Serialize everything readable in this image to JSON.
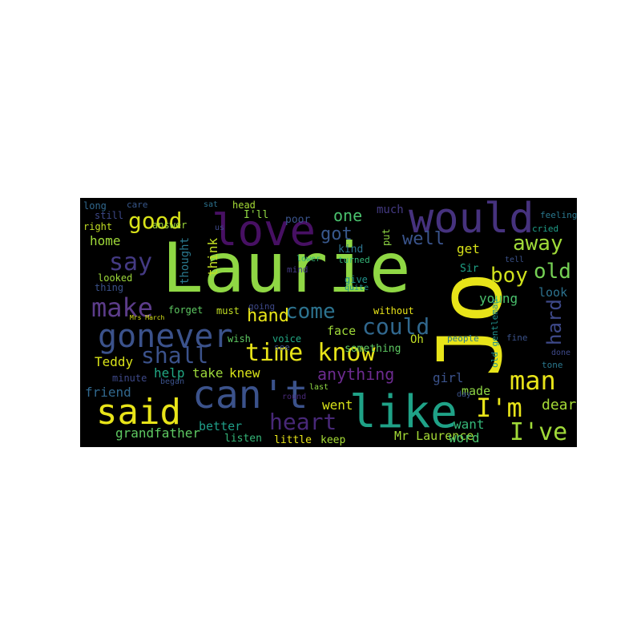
{
  "words": {
    "laurie": {
      "text": "Laurie",
      "color": "#8fd744"
    },
    "jo": {
      "text": "Jo",
      "color": "#e8e419"
    },
    "would": {
      "text": "would",
      "color": "#46327e"
    },
    "love": {
      "text": "love",
      "color": "#471063"
    },
    "cant": {
      "text": "can't",
      "color": "#3b528b"
    },
    "like": {
      "text": "like",
      "color": "#1fa287"
    },
    "said": {
      "text": "said",
      "color": "#e8e419"
    },
    "gonever": {
      "text": "gonever",
      "color": "#3b528b"
    },
    "time_know": {
      "text": "time know",
      "color": "#e8e419"
    },
    "good": {
      "text": "good",
      "color": "#d8e219"
    },
    "make": {
      "text": "make",
      "color": "#5c3c8a"
    },
    "say": {
      "text": "say",
      "color": "#443a83"
    },
    "could": {
      "text": "could",
      "color": "#31688e"
    },
    "shall": {
      "text": "shall",
      "color": "#3b528b"
    },
    "heart": {
      "text": "heart",
      "color": "#482878"
    },
    "come": {
      "text": "come",
      "color": "#2c728e"
    },
    "man": {
      "text": "man",
      "color": "#e8e419"
    },
    "im": {
      "text": "I'm",
      "color": "#e8e419"
    },
    "ive": {
      "text": "I've",
      "color": "#a0da39"
    },
    "boy": {
      "text": "boy",
      "color": "#d0e11c"
    },
    "old": {
      "text": "old",
      "color": "#75d054"
    },
    "away": {
      "text": "away",
      "color": "#a0da39"
    },
    "one": {
      "text": "one",
      "color": "#4ac16d"
    },
    "got": {
      "text": "got",
      "color": "#38588c"
    },
    "well": {
      "text": "well",
      "color": "#3a548c"
    },
    "hand": {
      "text": "hand",
      "color": "#e8e419"
    },
    "anything": {
      "text": "anything",
      "color": "#6c2b8f"
    },
    "hard": {
      "text": "hard",
      "color": "#3e4989"
    },
    "teddy": {
      "text": "Teddy",
      "color": "#d8e219"
    },
    "grandfather": {
      "text": "grandfather",
      "color": "#5ec962"
    },
    "mr_laurence": {
      "text": "Mr Laurence",
      "color": "#a5db36"
    },
    "home": {
      "text": "home",
      "color": "#a0da39"
    },
    "take": {
      "text": "take",
      "color": "#9dd93b"
    },
    "knew": {
      "text": "knew",
      "color": "#d8e219"
    },
    "help": {
      "text": "help",
      "color": "#22a884"
    },
    "friend": {
      "text": "friend",
      "color": "#31688e"
    },
    "better": {
      "text": "better",
      "color": "#1f9e89"
    },
    "listen": {
      "text": "listen",
      "color": "#35b779"
    },
    "little": {
      "text": "little",
      "color": "#e8e419"
    },
    "keep": {
      "text": "keep",
      "color": "#a5db36"
    },
    "word": {
      "text": "word",
      "color": "#4ac16d"
    },
    "want": {
      "text": "want",
      "color": "#35b779"
    },
    "dear": {
      "text": "dear",
      "color": "#a5db36"
    },
    "girl": {
      "text": "girl",
      "color": "#3b528b"
    },
    "made": {
      "text": "made",
      "color": "#8fd744"
    },
    "went": {
      "text": "went",
      "color": "#d8e219"
    },
    "get": {
      "text": "get",
      "color": "#d8e219"
    },
    "look": {
      "text": "look",
      "color": "#2c728e"
    },
    "young": {
      "text": "young",
      "color": "#4ac16d"
    },
    "face": {
      "text": "face",
      "color": "#a0da39"
    },
    "something": {
      "text": "something",
      "color": "#5ec962"
    },
    "without": {
      "text": "without",
      "color": "#e8e419"
    },
    "oh": {
      "text": "Oh",
      "color": "#c2df23"
    },
    "sir": {
      "text": "Sir",
      "color": "#1fa287"
    },
    "yes": {
      "text": "yes",
      "color": "#e8e419"
    },
    "much": {
      "text": "much",
      "color": "#443a83"
    },
    "kind": {
      "text": "kind",
      "color": "#2c728e"
    },
    "think": {
      "text": "think",
      "color": "#c2df23"
    },
    "thought": {
      "text": "thought",
      "color": "#2a788e"
    },
    "ill": {
      "text": "I'll",
      "color": "#8fd744"
    },
    "poor": {
      "text": "poor",
      "color": "#3a548c"
    },
    "long": {
      "text": "long",
      "color": "#31688e"
    },
    "care": {
      "text": "care",
      "color": "#38588c"
    },
    "head": {
      "text": "head",
      "color": "#a5db36"
    },
    "still": {
      "text": "still",
      "color": "#3e4989"
    },
    "right": {
      "text": "right",
      "color": "#c2df23"
    },
    "answer": {
      "text": "answer",
      "color": "#a0da39"
    },
    "looked": {
      "text": "looked",
      "color": "#9dd93b"
    },
    "thing": {
      "text": "thing",
      "color": "#3b528b"
    },
    "forget": {
      "text": "forget",
      "color": "#5ec962"
    },
    "must": {
      "text": "must",
      "color": "#c2df23"
    },
    "going": {
      "text": "going",
      "color": "#3e4989"
    },
    "mrs_march": {
      "text": "Mrs March",
      "color": "#d8e219"
    },
    "wish": {
      "text": "wish",
      "color": "#5ec962"
    },
    "voice": {
      "text": "voice",
      "color": "#22a884"
    },
    "see": {
      "text": "see",
      "color": "#3b528b"
    },
    "last": {
      "text": "last",
      "color": "#8fd744"
    },
    "round": {
      "text": "round",
      "color": "#482878"
    },
    "minute": {
      "text": "minute",
      "color": "#3e4989"
    },
    "began": {
      "text": "began",
      "color": "#3b528b"
    },
    "cried": {
      "text": "cried",
      "color": "#1f9e89"
    },
    "feeling": {
      "text": "feeling",
      "color": "#2a788e"
    },
    "give": {
      "text": "give",
      "color": "#21918c"
    },
    "quite": {
      "text": "quite",
      "color": "#21918c"
    },
    "turned": {
      "text": "turned",
      "color": "#35b779"
    },
    "lower": {
      "text": "lower",
      "color": "#35b779"
    },
    "mind": {
      "text": "mind",
      "color": "#443a83"
    },
    "fine": {
      "text": "fine",
      "color": "#3b528b"
    },
    "done": {
      "text": "done",
      "color": "#3e4989"
    },
    "tone": {
      "text": "tone",
      "color": "#2a788e"
    },
    "people": {
      "text": "people",
      "color": "#2a788e"
    },
    "tell": {
      "text": "tell",
      "color": "#3b528b"
    },
    "old_gentleman": {
      "text": "old gentleman",
      "color": "#21918c"
    },
    "put": {
      "text": "put",
      "color": "#8fd744"
    },
    "us": {
      "text": "us",
      "color": "#3e4989"
    },
    "day": {
      "text": "day",
      "color": "#3b528b"
    },
    "sat": {
      "text": "sat",
      "color": "#2c728e"
    }
  }
}
